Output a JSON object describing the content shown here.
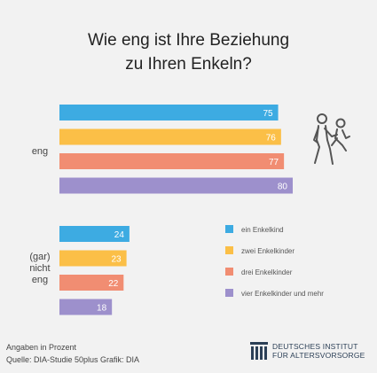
{
  "chart_data": {
    "type": "bar",
    "orientation": "horizontal",
    "title": [
      "Wie eng ist Ihre Beziehung",
      "zu Ihren Enkeln?"
    ],
    "categories": [
      "eng",
      "(gar) nicht eng"
    ],
    "category_label_lines": [
      [
        "eng"
      ],
      [
        "(gar)",
        "nicht",
        "eng"
      ]
    ],
    "series": [
      {
        "name": "ein Enkelkind",
        "color": "#3dabe2",
        "values": [
          75,
          24
        ]
      },
      {
        "name": "zwei Enkelkinder",
        "color": "#fbbf47",
        "values": [
          76,
          23
        ]
      },
      {
        "name": "drei Enkelkinder",
        "color": "#f18d72",
        "values": [
          77,
          22
        ]
      },
      {
        "name": "vier Enkelkinder und mehr",
        "color": "#9d90cc",
        "values": [
          80,
          18
        ]
      }
    ],
    "xlim": [
      0,
      80
    ],
    "grid": false,
    "legend_position": "right"
  },
  "footnote": {
    "line1": "Angaben in Prozent",
    "line2": "Quelle: DIA-Studie 50plus  Grafik: DIA"
  },
  "logo": {
    "line1": "DEUTSCHES INSTITUT",
    "line2": "FÜR ALTERSVORSORGE",
    "color": "#2b3f56"
  },
  "icons": {
    "illustration": "grandparent-carrying-grandchild-icon",
    "logo_mark": "pillars-logo-icon"
  }
}
